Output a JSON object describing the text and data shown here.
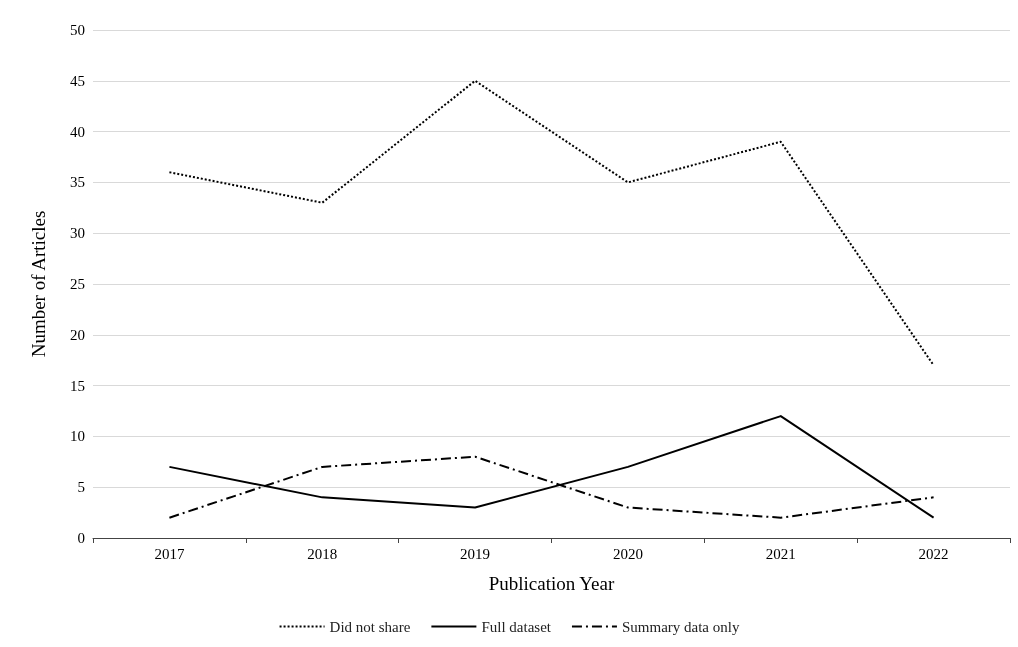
{
  "chart_data": {
    "type": "line",
    "xlabel": "Publication Year",
    "ylabel": "Number of Articles",
    "categories": [
      "2017",
      "2018",
      "2019",
      "2020",
      "2021",
      "2022"
    ],
    "series": [
      {
        "name": "Did not share",
        "color": "#000000",
        "line_style": "dotted",
        "values": [
          36,
          33,
          45,
          35,
          39,
          17
        ]
      },
      {
        "name": "Full dataset",
        "color": "#000000",
        "line_style": "solid",
        "values": [
          7,
          4,
          3,
          7,
          12,
          2
        ]
      },
      {
        "name": "Summary data only",
        "color": "#000000",
        "line_style": "dashdot",
        "values": [
          2,
          7,
          8,
          3,
          2,
          4
        ]
      }
    ],
    "ylim": [
      0,
      50
    ],
    "yticks": [
      0,
      5,
      10,
      15,
      20,
      25,
      30,
      35,
      40,
      45,
      50
    ],
    "grid": "y",
    "legend": "bottom",
    "marker": "none"
  }
}
